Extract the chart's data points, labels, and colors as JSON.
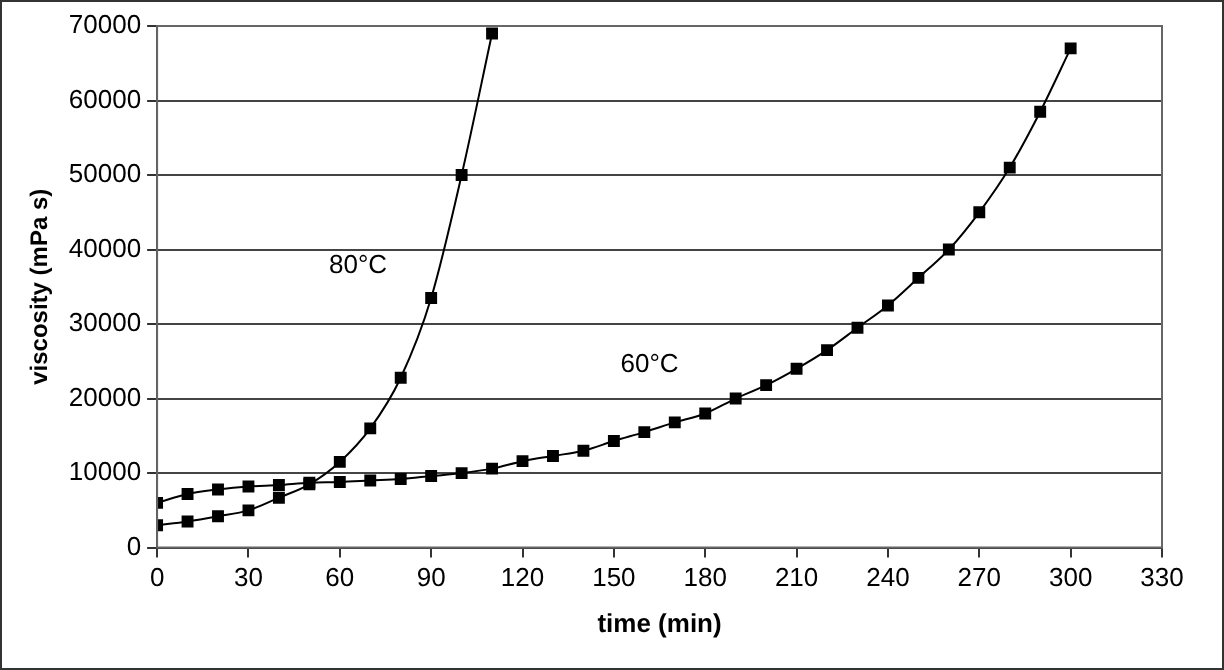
{
  "chart_data": {
    "type": "line",
    "xlabel": "time (min)",
    "ylabel": "viscosity (mPa s)",
    "xlim": [
      0,
      330
    ],
    "xticks": [
      0,
      30,
      60,
      90,
      120,
      150,
      180,
      210,
      240,
      270,
      300,
      330
    ],
    "ylim": [
      0,
      70000
    ],
    "yticks": [
      0,
      10000,
      20000,
      30000,
      40000,
      50000,
      60000,
      70000
    ],
    "grid": "y",
    "legend": false,
    "marker": "square",
    "line_style": "solid",
    "series": [
      {
        "name": "80°C",
        "color": "#000000",
        "x": [
          0,
          10,
          20,
          30,
          40,
          50,
          60,
          70,
          80,
          90,
          100,
          110
        ],
        "values": [
          3000,
          3500,
          4200,
          5000,
          6700,
          8500,
          11500,
          16000,
          22800,
          33500,
          50000,
          69000
        ]
      },
      {
        "name": "60°C",
        "color": "#000000",
        "x": [
          0,
          10,
          20,
          30,
          40,
          50,
          60,
          70,
          80,
          90,
          100,
          110,
          120,
          130,
          140,
          150,
          160,
          170,
          180,
          190,
          200,
          210,
          220,
          230,
          240,
          250,
          260,
          270,
          280,
          290,
          300
        ],
        "values": [
          6000,
          7200,
          7800,
          8200,
          8400,
          8700,
          8800,
          9000,
          9200,
          9600,
          10000,
          10600,
          11600,
          12300,
          13000,
          14300,
          15500,
          16800,
          18000,
          20000,
          21800,
          24000,
          26500,
          29500,
          32500,
          36200,
          40000,
          45000,
          51000,
          58500,
          67000
        ]
      }
    ]
  }
}
